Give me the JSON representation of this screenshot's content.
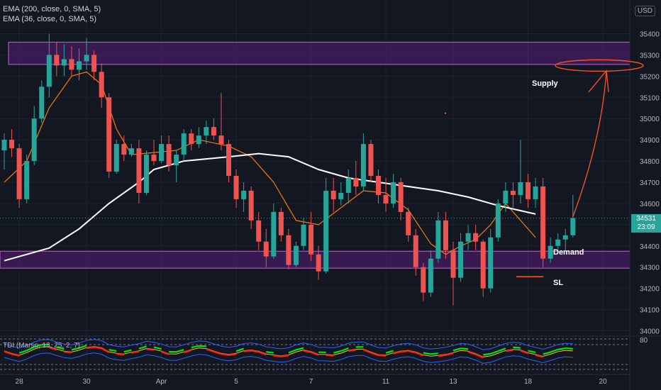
{
  "legend": {
    "ema200": "EMA (200, close, 0, SMA, 5)",
    "ema36": "EMA (36, close, 0, SMA, 5)"
  },
  "currency_label": "USD",
  "last_price": {
    "value": "34531",
    "countdown": "23:09"
  },
  "annotations": {
    "supply": "Supply",
    "demand": "Demand",
    "sl": "SL"
  },
  "indicator": {
    "label": "TDI (Marso, 13, 25, 2, 7)",
    "axis_tick": "80"
  },
  "colors": {
    "background": "#131722",
    "bull": "#26a69a",
    "bear": "#ef5350",
    "ema200": "#ffffff",
    "ema36": "#f57c00",
    "zone": "#7b1fa2",
    "tdi_green": "#00e600",
    "tdi_red": "#ff1a1a",
    "arrow": "#f4511e"
  },
  "chart_data": {
    "type": "candlestick",
    "x_ticks": [
      "28",
      "30",
      "Apr",
      "5",
      "7",
      "11",
      "13",
      "18",
      "20"
    ],
    "y_ticks": [
      34000,
      34100,
      34200,
      34300,
      34400,
      34500,
      34600,
      34700,
      34800,
      34900,
      35000,
      35100,
      35200,
      35300,
      35400
    ],
    "ylim": [
      33995,
      35435
    ],
    "supply_zone": [
      35255,
      35360
    ],
    "demand_zone": [
      34295,
      34375
    ],
    "ema200_path": [
      [
        0,
        34330
      ],
      [
        6,
        34390
      ],
      [
        10,
        34480
      ],
      [
        14,
        34600
      ],
      [
        18,
        34700
      ],
      [
        20,
        34760
      ],
      [
        24,
        34800
      ],
      [
        30,
        34820
      ],
      [
        34,
        34835
      ],
      [
        38,
        34820
      ],
      [
        42,
        34760
      ],
      [
        46,
        34720
      ],
      [
        50,
        34700
      ],
      [
        54,
        34680
      ],
      [
        58,
        34660
      ],
      [
        62,
        34630
      ],
      [
        66,
        34590
      ],
      [
        71,
        34550
      ]
    ],
    "ema36_path": [
      [
        0,
        34700
      ],
      [
        3,
        34800
      ],
      [
        6,
        35050
      ],
      [
        9,
        35200
      ],
      [
        11,
        35220
      ],
      [
        13,
        35160
      ],
      [
        15,
        34950
      ],
      [
        17,
        34830
      ],
      [
        20,
        34840
      ],
      [
        23,
        34850
      ],
      [
        26,
        34900
      ],
      [
        30,
        34870
      ],
      [
        33,
        34820
      ],
      [
        36,
        34700
      ],
      [
        39,
        34520
      ],
      [
        42,
        34500
      ],
      [
        45,
        34580
      ],
      [
        48,
        34660
      ],
      [
        51,
        34650
      ],
      [
        54,
        34570
      ],
      [
        57,
        34410
      ],
      [
        59,
        34360
      ],
      [
        61,
        34400
      ],
      [
        63,
        34430
      ],
      [
        65,
        34500
      ],
      [
        67,
        34600
      ],
      [
        68,
        34560
      ],
      [
        71,
        34440
      ]
    ],
    "candles": [
      [
        34850,
        34930,
        34760,
        34900
      ],
      [
        34900,
        34950,
        34820,
        34860
      ],
      [
        34860,
        34880,
        34580,
        34620
      ],
      [
        34620,
        34830,
        34600,
        34800
      ],
      [
        34800,
        35060,
        34780,
        35000
      ],
      [
        35000,
        35180,
        34980,
        35150
      ],
      [
        35150,
        35400,
        35100,
        35300
      ],
      [
        35300,
        35360,
        35200,
        35250
      ],
      [
        35250,
        35350,
        35200,
        35280
      ],
      [
        35280,
        35340,
        35200,
        35230
      ],
      [
        35230,
        35330,
        35180,
        35270
      ],
      [
        35270,
        35380,
        35230,
        35300
      ],
      [
        35300,
        35320,
        35180,
        35220
      ],
      [
        35220,
        35260,
        35050,
        35100
      ],
      [
        35100,
        35120,
        34720,
        34750
      ],
      [
        34750,
        34900,
        34740,
        34880
      ],
      [
        34880,
        34920,
        34800,
        34830
      ],
      [
        34830,
        34880,
        34820,
        34860
      ],
      [
        34860,
        34900,
        34600,
        34650
      ],
      [
        34650,
        34850,
        34640,
        34830
      ],
      [
        34830,
        34900,
        34780,
        34800
      ],
      [
        34800,
        34920,
        34790,
        34880
      ],
      [
        34880,
        34920,
        34750,
        34780
      ],
      [
        34780,
        34850,
        34700,
        34830
      ],
      [
        34830,
        34950,
        34800,
        34930
      ],
      [
        34930,
        34950,
        34850,
        34880
      ],
      [
        34880,
        34960,
        34860,
        34920
      ],
      [
        34920,
        34990,
        34880,
        34960
      ],
      [
        34960,
        35000,
        34900,
        34920
      ],
      [
        34920,
        35120,
        34850,
        34880
      ],
      [
        34880,
        34900,
        34700,
        34730
      ],
      [
        34730,
        34760,
        34580,
        34620
      ],
      [
        34620,
        34700,
        34560,
        34660
      ],
      [
        34660,
        34680,
        34480,
        34520
      ],
      [
        34520,
        34560,
        34380,
        34420
      ],
      [
        34420,
        34480,
        34300,
        34350
      ],
      [
        34350,
        34600,
        34340,
        34560
      ],
      [
        34560,
        34580,
        34420,
        34450
      ],
      [
        34450,
        34480,
        34290,
        34310
      ],
      [
        34310,
        34420,
        34300,
        34400
      ],
      [
        34400,
        34530,
        34380,
        34500
      ],
      [
        34500,
        34560,
        34330,
        34360
      ],
      [
        34360,
        34400,
        34240,
        34280
      ],
      [
        34280,
        34720,
        34270,
        34660
      ],
      [
        34660,
        34720,
        34560,
        34620
      ],
      [
        34620,
        34700,
        34590,
        34650
      ],
      [
        34650,
        34760,
        34600,
        34720
      ],
      [
        34720,
        34800,
        34640,
        34680
      ],
      [
        34680,
        34930,
        34660,
        34880
      ],
      [
        34880,
        34900,
        34700,
        34730
      ],
      [
        34730,
        34760,
        34600,
        34640
      ],
      [
        34640,
        34720,
        34560,
        34600
      ],
      [
        34600,
        34740,
        34580,
        34700
      ],
      [
        34700,
        34720,
        34520,
        34560
      ],
      [
        34560,
        34580,
        34420,
        34450
      ],
      [
        34450,
        34480,
        34260,
        34300
      ],
      [
        34300,
        34320,
        34140,
        34180
      ],
      [
        34180,
        34380,
        34160,
        34340
      ],
      [
        34340,
        34560,
        34320,
        34520
      ],
      [
        34520,
        34560,
        34340,
        34380
      ],
      [
        34380,
        34420,
        34120,
        34250
      ],
      [
        34250,
        34460,
        34230,
        34420
      ],
      [
        34420,
        34500,
        34380,
        34460
      ],
      [
        34460,
        34500,
        34380,
        34420
      ],
      [
        34420,
        34430,
        34160,
        34200
      ],
      [
        34200,
        34480,
        34180,
        34440
      ],
      [
        34440,
        34620,
        34420,
        34600
      ],
      [
        34600,
        34700,
        34560,
        34660
      ],
      [
        34660,
        34700,
        34580,
        34640
      ],
      [
        34640,
        34900,
        34600,
        34700
      ],
      [
        34700,
        34740,
        34580,
        34620
      ],
      [
        34620,
        34720,
        34580,
        34680
      ],
      [
        34680,
        34720,
        34300,
        34340
      ],
      [
        34340,
        34440,
        34320,
        34400
      ],
      [
        34400,
        34460,
        34360,
        34430
      ],
      [
        34430,
        34480,
        34380,
        34450
      ],
      [
        34450,
        34640,
        34440,
        34531
      ]
    ]
  }
}
